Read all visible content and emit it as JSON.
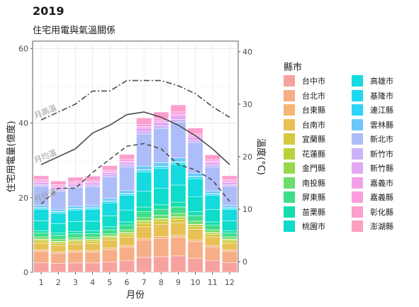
{
  "title": "2019",
  "subtitle": "住宅用電與氣溫關係",
  "chart_data": {
    "type": "bar",
    "stacked": true,
    "xlabel": "月份",
    "ylabel": "住宅用電量(億度)",
    "y2label": "溫度(°C)",
    "categories": [
      "1",
      "2",
      "3",
      "4",
      "5",
      "6",
      "7",
      "8",
      "9",
      "10",
      "11",
      "12"
    ],
    "ylim": [
      0,
      62
    ],
    "y_ticks": [
      0,
      20,
      40,
      60
    ],
    "y2lim": [
      -2,
      42
    ],
    "y2_ticks": [
      0,
      10,
      20,
      30,
      40
    ],
    "grid": true,
    "legend_position": "right",
    "legend_title": "縣市",
    "series": [
      {
        "name": "台中市",
        "color": "#F8A29F",
        "values": [
          2.6,
          2.4,
          2.5,
          2.5,
          2.8,
          3.1,
          4.0,
          4.2,
          4.4,
          3.8,
          3.2,
          2.6
        ]
      },
      {
        "name": "台北市",
        "color": "#F7AE86",
        "values": [
          3.0,
          2.7,
          2.9,
          2.9,
          3.3,
          3.6,
          4.6,
          4.9,
          5.0,
          4.4,
          3.6,
          3.0
        ]
      },
      {
        "name": "台東縣",
        "color": "#F4B576",
        "values": [
          0.4,
          0.4,
          0.4,
          0.4,
          0.4,
          0.4,
          0.5,
          0.5,
          0.5,
          0.4,
          0.4,
          0.4
        ]
      },
      {
        "name": "台南市",
        "color": "#E8C056",
        "values": [
          1.8,
          1.7,
          1.8,
          1.9,
          2.1,
          2.3,
          3.1,
          3.2,
          3.4,
          2.9,
          2.3,
          1.8
        ]
      },
      {
        "name": "宜蘭縣",
        "color": "#D6C840",
        "values": [
          0.6,
          0.6,
          0.6,
          0.6,
          0.6,
          0.7,
          0.9,
          0.9,
          0.9,
          0.8,
          0.7,
          0.6
        ]
      },
      {
        "name": "花蓮縣",
        "color": "#BBD03E",
        "values": [
          0.4,
          0.4,
          0.4,
          0.4,
          0.4,
          0.5,
          0.6,
          0.6,
          0.6,
          0.5,
          0.4,
          0.4
        ]
      },
      {
        "name": "金門縣",
        "color": "#98D84F",
        "values": [
          0.1,
          0.1,
          0.1,
          0.1,
          0.1,
          0.1,
          0.1,
          0.1,
          0.1,
          0.1,
          0.1,
          0.1
        ]
      },
      {
        "name": "南投縣",
        "color": "#6EDC6A",
        "values": [
          0.6,
          0.6,
          0.6,
          0.6,
          0.6,
          0.7,
          0.9,
          0.9,
          0.9,
          0.8,
          0.7,
          0.6
        ]
      },
      {
        "name": "屏東縣",
        "color": "#3EDD8B",
        "values": [
          1.0,
          1.0,
          1.0,
          1.0,
          1.1,
          1.2,
          1.6,
          1.6,
          1.7,
          1.5,
          1.2,
          1.0
        ]
      },
      {
        "name": "苗栗縣",
        "color": "#17DDAE",
        "values": [
          0.7,
          0.7,
          0.7,
          0.7,
          0.8,
          0.9,
          1.2,
          1.2,
          1.3,
          1.1,
          0.9,
          0.7
        ]
      },
      {
        "name": "桃園市",
        "color": "#0FDCCB",
        "values": [
          2.6,
          2.4,
          2.6,
          2.6,
          2.9,
          3.2,
          4.2,
          4.4,
          4.6,
          4.0,
          3.3,
          2.6
        ]
      },
      {
        "name": "高雄市",
        "color": "#15DAE0",
        "values": [
          3.0,
          2.8,
          3.0,
          3.1,
          3.5,
          3.9,
          5.2,
          5.3,
          5.6,
          4.8,
          3.8,
          3.0
        ]
      },
      {
        "name": "基隆市",
        "color": "#1ED8F0",
        "values": [
          0.4,
          0.4,
          0.4,
          0.4,
          0.4,
          0.4,
          0.5,
          0.5,
          0.5,
          0.5,
          0.4,
          0.4
        ]
      },
      {
        "name": "連江縣",
        "color": "#2ED2FA",
        "values": [
          0.1,
          0.1,
          0.1,
          0.1,
          0.1,
          0.1,
          0.1,
          0.1,
          0.1,
          0.1,
          0.1,
          0.1
        ]
      },
      {
        "name": "雲林縣",
        "color": "#6CC8FB",
        "values": [
          0.6,
          0.6,
          0.6,
          0.6,
          0.7,
          0.8,
          1.0,
          1.0,
          1.1,
          0.9,
          0.7,
          0.6
        ]
      },
      {
        "name": "新北市",
        "color": "#ADBDF9",
        "values": [
          5.2,
          4.9,
          5.0,
          5.1,
          5.8,
          6.4,
          8.6,
          9.2,
          9.6,
          8.2,
          6.5,
          5.2
        ]
      },
      {
        "name": "新竹市",
        "color": "#CDB2F8",
        "values": [
          0.4,
          0.4,
          0.4,
          0.4,
          0.5,
          0.5,
          0.7,
          0.7,
          0.7,
          0.6,
          0.5,
          0.4
        ]
      },
      {
        "name": "新竹縣",
        "color": "#E3A7F4",
        "values": [
          0.6,
          0.6,
          0.6,
          0.6,
          0.6,
          0.7,
          0.9,
          0.9,
          1.0,
          0.8,
          0.7,
          0.6
        ]
      },
      {
        "name": "嘉義市",
        "color": "#F3A0EA",
        "values": [
          0.3,
          0.3,
          0.3,
          0.3,
          0.3,
          0.3,
          0.4,
          0.4,
          0.4,
          0.4,
          0.3,
          0.3
        ]
      },
      {
        "name": "嘉義縣",
        "color": "#FB9DDD",
        "values": [
          0.4,
          0.4,
          0.4,
          0.4,
          0.4,
          0.5,
          0.6,
          0.6,
          0.6,
          0.5,
          0.4,
          0.4
        ]
      },
      {
        "name": "彰化縣",
        "color": "#FC9ECE",
        "values": [
          1.1,
          1.0,
          1.1,
          1.1,
          1.2,
          1.3,
          1.7,
          1.8,
          1.9,
          1.6,
          1.3,
          1.1
        ]
      },
      {
        "name": "澎湖縣",
        "color": "#FBA0BE",
        "values": [
          0.1,
          0.1,
          0.1,
          0.1,
          0.1,
          0.1,
          0.1,
          0.1,
          0.1,
          0.1,
          0.1,
          0.1
        ]
      }
    ],
    "temperature_lines": [
      {
        "name": "月高溫",
        "style": "dashdot",
        "color": "#4d4d4d",
        "values": [
          27.0,
          28.5,
          30.0,
          32.5,
          32.5,
          34.5,
          34.5,
          34.5,
          33.5,
          32.0,
          29.5,
          27.5
        ]
      },
      {
        "name": "月均溫",
        "style": "solid",
        "color": "#4d4d4d",
        "values": [
          18.5,
          20.0,
          21.5,
          24.5,
          26.0,
          28.0,
          28.5,
          27.5,
          26.0,
          24.0,
          21.5,
          18.5
        ]
      },
      {
        "name": "月低溫",
        "style": "dashed",
        "color": "#4d4d4d",
        "values": [
          11.0,
          14.0,
          14.0,
          17.0,
          19.5,
          22.0,
          22.5,
          21.5,
          18.5,
          17.5,
          15.5,
          11.5
        ]
      }
    ]
  }
}
